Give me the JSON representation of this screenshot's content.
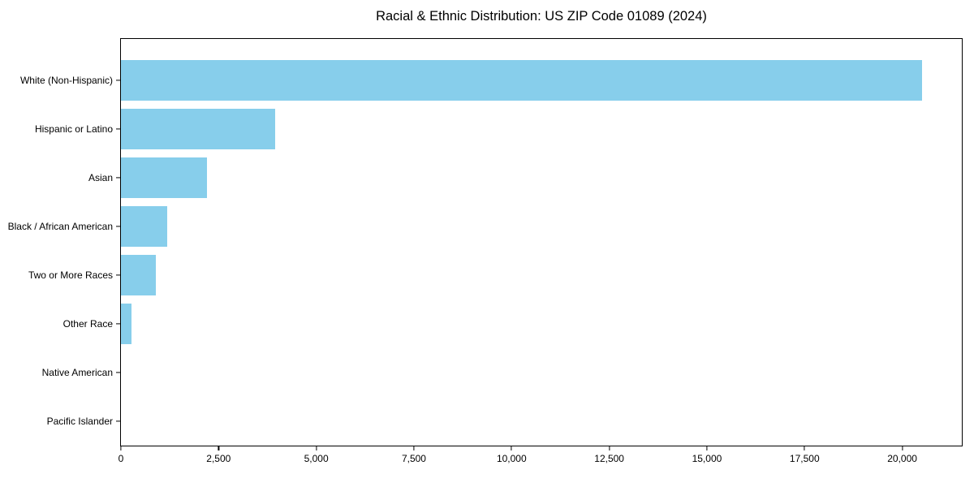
{
  "title": "Racial & Ethnic Distribution: US ZIP Code 01089 (2024)",
  "chart_data": {
    "type": "bar",
    "orientation": "horizontal",
    "title": "Racial & Ethnic Distribution: US ZIP Code 01089 (2024)",
    "xlabel": "",
    "ylabel": "",
    "categories": [
      "White (Non-Hispanic)",
      "Hispanic or Latino",
      "Asian",
      "Black / African American",
      "Two or More Races",
      "Other Race",
      "Native American",
      "Pacific Islander"
    ],
    "values": [
      20500,
      3950,
      2200,
      1180,
      890,
      270,
      0,
      0
    ],
    "xlim": [
      0,
      21525
    ],
    "xticks": [
      0,
      2500,
      5000,
      7500,
      10000,
      12500,
      15000,
      17500,
      20000
    ],
    "xtick_labels": [
      "0",
      "2,500",
      "5,000",
      "7,500",
      "10,000",
      "12,500",
      "15,000",
      "17,500",
      "20,000"
    ],
    "bar_color": "#87CEEB",
    "axis_color": "#000000",
    "background_color": "#ffffff",
    "grid": false,
    "legend": null
  }
}
